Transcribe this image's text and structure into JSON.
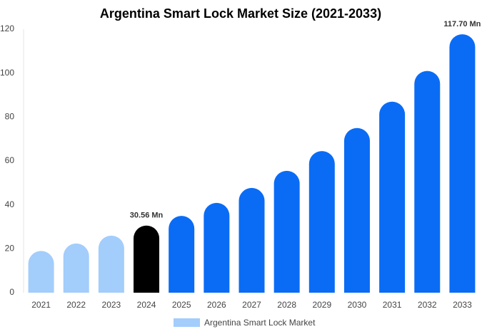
{
  "chart_data": {
    "type": "bar",
    "title": "Argentina Smart Lock Market Size (2021-2033)",
    "categories": [
      "2021",
      "2022",
      "2023",
      "2024",
      "2025",
      "2026",
      "2027",
      "2028",
      "2029",
      "2030",
      "2031",
      "2032",
      "2033"
    ],
    "series": [
      {
        "name": "Argentina Smart Lock Market",
        "color": "#a3cdfb",
        "values": [
          19,
          22.4,
          26,
          30.56,
          35,
          40.9,
          47.7,
          55.5,
          64.5,
          75,
          87,
          101,
          117.7
        ],
        "value_labels": [
          null,
          null,
          null,
          "30.56 Mn",
          null,
          null,
          null,
          null,
          null,
          null,
          null,
          null,
          "117.70 Mn"
        ],
        "colors": [
          "#a3cdfb",
          "#a3cdfb",
          "#a3cdfb",
          "#000000",
          "#0a6cf5",
          "#0a6cf5",
          "#0a6cf5",
          "#0a6cf5",
          "#0a6cf5",
          "#0a6cf5",
          "#0a6cf5",
          "#0a6cf5",
          "#0a6cf5"
        ]
      }
    ],
    "ylim": [
      0,
      120
    ],
    "yticks": [
      0,
      20,
      40,
      60,
      80,
      100,
      120
    ],
    "grid": false,
    "legend": "bottom"
  }
}
